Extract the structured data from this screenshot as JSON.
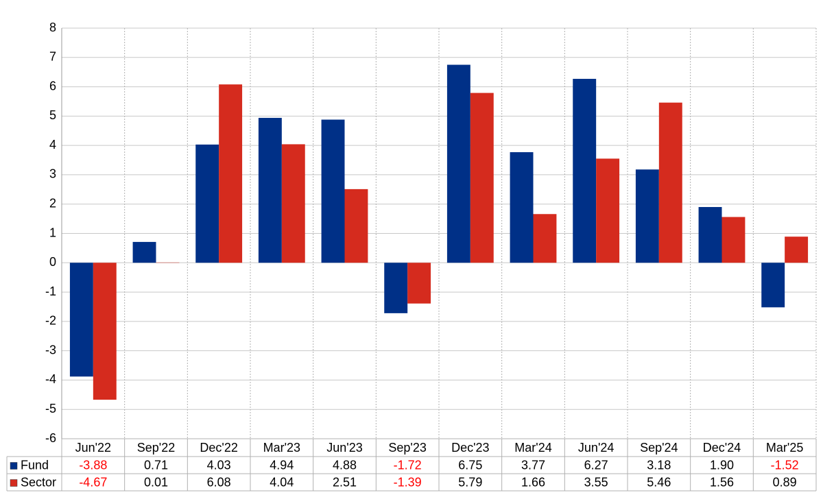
{
  "chart_data": {
    "type": "bar",
    "categories": [
      "Jun'22",
      "Sep'22",
      "Dec'22",
      "Mar'23",
      "Jun'23",
      "Sep'23",
      "Dec'23",
      "Mar'24",
      "Jun'24",
      "Sep'24",
      "Dec'24",
      "Mar'25"
    ],
    "series": [
      {
        "name": "Fund",
        "color": "#003087",
        "values": [
          -3.88,
          0.71,
          4.03,
          4.94,
          4.88,
          -1.72,
          6.75,
          3.77,
          6.27,
          3.18,
          1.9,
          -1.52
        ],
        "value_labels": [
          "-3.88",
          "0.71",
          "4.03",
          "4.94",
          "4.88",
          "-1.72",
          "6.75",
          "3.77",
          "6.27",
          "3.18",
          "1.90",
          "-1.52"
        ]
      },
      {
        "name": "Sector",
        "color": "#d52b1e",
        "values": [
          -4.67,
          0.01,
          6.08,
          4.04,
          2.51,
          -1.39,
          5.79,
          1.66,
          3.55,
          5.46,
          1.56,
          0.89
        ],
        "value_labels": [
          "-4.67",
          "0.01",
          "6.08",
          "4.04",
          "2.51",
          "-1.39",
          "5.79",
          "1.66",
          "3.55",
          "5.46",
          "1.56",
          "0.89"
        ]
      }
    ],
    "ylim": [
      -6,
      8
    ],
    "yticks": [
      -6,
      -5,
      -4,
      -3,
      -2,
      -1,
      0,
      1,
      2,
      3,
      4,
      5,
      6,
      7,
      8
    ],
    "grid": true
  }
}
